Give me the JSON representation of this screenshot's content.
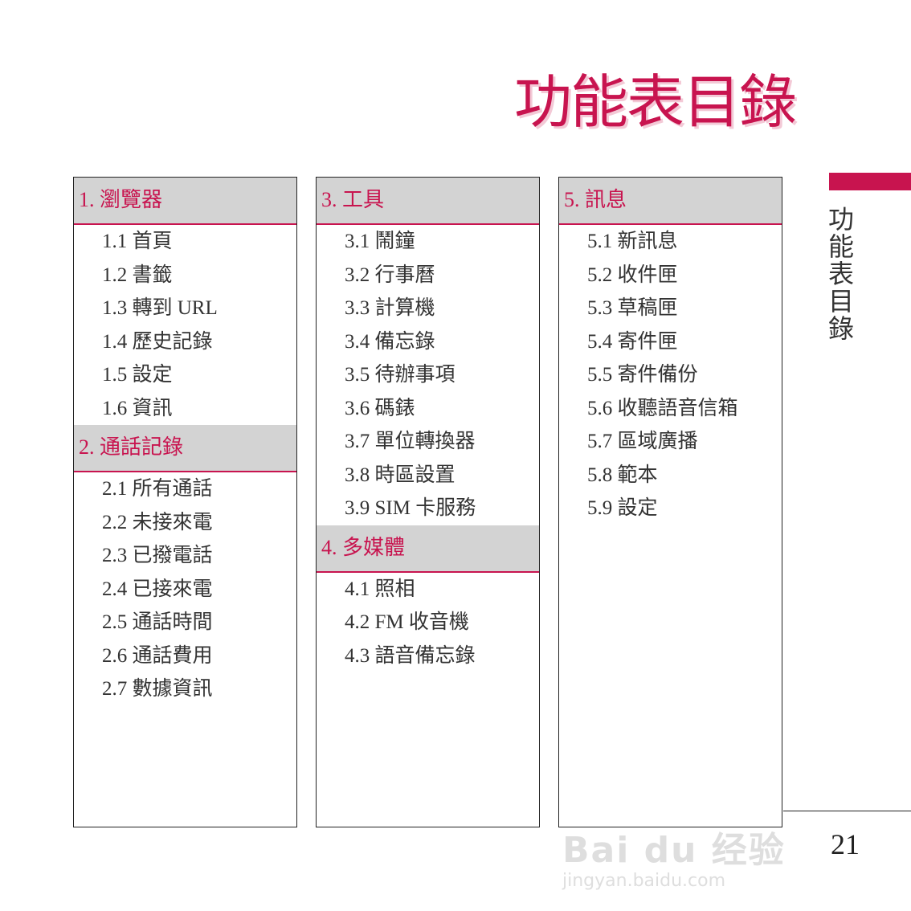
{
  "title": "功能表目錄",
  "side_tab": {
    "label": "功能表目錄",
    "accent_color": "#c8144f"
  },
  "page_number": "21",
  "watermark": {
    "brand": "Bai du 经验",
    "url": "jingyan.baidu.com"
  },
  "columns": [
    {
      "sections": [
        {
          "header": "1. 瀏覽器",
          "items": [
            "1.1 首頁",
            "1.2 書籤",
            "1.3 轉到 URL",
            "1.4 歷史記錄",
            "1.5 設定",
            "1.6 資訊"
          ]
        },
        {
          "header": "2. 通話記錄",
          "items": [
            "2.1 所有通話",
            "2.2 未接來電",
            "2.3 已撥電話",
            "2.4 已接來電",
            "2.5 通話時間",
            "2.6 通話費用",
            "2.7 數據資訊"
          ]
        }
      ]
    },
    {
      "sections": [
        {
          "header": "3. 工具",
          "items": [
            "3.1 鬧鐘",
            "3.2 行事曆",
            "3.3 計算機",
            "3.4 備忘錄",
            "3.5 待辦事項",
            "3.6 碼錶",
            "3.7 單位轉換器",
            "3.8 時區設置",
            "3.9 SIM 卡服務"
          ]
        },
        {
          "header": "4. 多媒體",
          "items": [
            "4.1 照相",
            "4.2 FM 收音機",
            "4.3 語音備忘錄"
          ]
        }
      ]
    },
    {
      "sections": [
        {
          "header": "5. 訊息",
          "items": [
            "5.1 新訊息",
            "5.2 收件匣",
            "5.3 草稿匣",
            "5.4 寄件匣",
            "5.5 寄件備份",
            "5.6 收聽語音信箱",
            "5.7 區域廣播",
            "5.8 範本",
            "5.9 設定"
          ]
        }
      ]
    }
  ]
}
